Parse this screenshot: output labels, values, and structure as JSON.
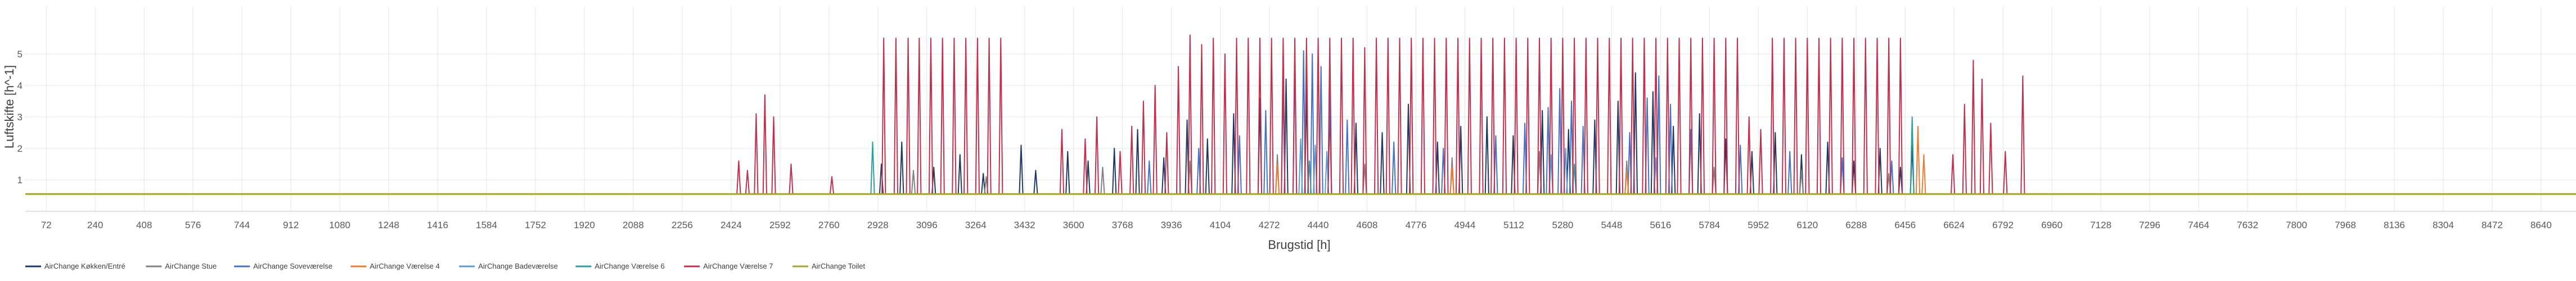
{
  "chart_data": {
    "type": "line",
    "title": "",
    "xlabel": "Brugstid [h]",
    "ylabel": "Luftskifte [h^-1]",
    "xlim": [
      0,
      8760
    ],
    "ylim": [
      0,
      6.5
    ],
    "grid": true,
    "legend_position": "bottom-left",
    "x_ticks": [
      72,
      240,
      408,
      576,
      744,
      912,
      1080,
      1248,
      1416,
      1584,
      1752,
      1920,
      2088,
      2256,
      2424,
      2592,
      2760,
      2928,
      3096,
      3264,
      3432,
      3600,
      3768,
      3936,
      4104,
      4272,
      4440,
      4608,
      4776,
      4944,
      5112,
      5280,
      5448,
      5616,
      5784,
      5952,
      6120,
      6288,
      6456,
      6624,
      6792,
      6960,
      7128,
      7296,
      7464,
      7632,
      7800,
      7968,
      8136,
      8304,
      8472,
      8640
    ],
    "y_ticks": [
      1,
      2,
      3,
      4,
      5
    ],
    "baseline": 0.55,
    "series": [
      {
        "name": "AirChange Køkken/Entré",
        "color": "#203864",
        "peaks": [
          [
            2940,
            1.5
          ],
          [
            3010,
            2.2
          ],
          [
            3120,
            1.4
          ],
          [
            3210,
            1.8
          ],
          [
            3290,
            1.2
          ],
          [
            3420,
            2.1
          ],
          [
            3470,
            1.3
          ],
          [
            3580,
            1.9
          ],
          [
            3650,
            1.6
          ],
          [
            3740,
            2.0
          ],
          [
            3820,
            2.6
          ],
          [
            3910,
            1.7
          ],
          [
            3990,
            2.9
          ],
          [
            4060,
            2.3
          ],
          [
            4150,
            3.1
          ],
          [
            4240,
            3.6
          ],
          [
            4330,
            4.2
          ],
          [
            4400,
            3.9
          ],
          [
            4480,
            3.3
          ],
          [
            4570,
            2.8
          ],
          [
            4660,
            2.5
          ],
          [
            4750,
            3.4
          ],
          [
            4850,
            2.2
          ],
          [
            4930,
            2.7
          ],
          [
            5020,
            3.0
          ],
          [
            5110,
            2.4
          ],
          [
            5210,
            3.2
          ],
          [
            5300,
            2.6
          ],
          [
            5390,
            2.9
          ],
          [
            5470,
            3.5
          ],
          [
            5530,
            4.4
          ],
          [
            5590,
            3.8
          ],
          [
            5660,
            2.7
          ],
          [
            5750,
            3.1
          ],
          [
            5840,
            2.3
          ],
          [
            5930,
            1.9
          ],
          [
            6010,
            2.5
          ],
          [
            6100,
            1.8
          ],
          [
            6190,
            2.2
          ],
          [
            6280,
            1.6
          ],
          [
            6370,
            2.0
          ],
          [
            6440,
            1.4
          ],
          [
            6480,
            2.1
          ]
        ]
      },
      {
        "name": "AirChange Stue",
        "color": "#808080",
        "peaks": [
          [
            3050,
            1.3
          ],
          [
            3300,
            1.1
          ],
          [
            3700,
            1.4
          ],
          [
            4000,
            1.6
          ],
          [
            4300,
            1.8
          ],
          [
            4600,
            1.5
          ],
          [
            4900,
            1.7
          ],
          [
            5200,
            1.9
          ],
          [
            5500,
            1.6
          ],
          [
            5800,
            1.4
          ],
          [
            6100,
            1.3
          ],
          [
            6400,
            1.2
          ]
        ]
      },
      {
        "name": "AirChange Soveværelse",
        "color": "#4472C4",
        "peaks": [
          [
            3860,
            1.6
          ],
          [
            4030,
            2.0
          ],
          [
            4170,
            2.4
          ],
          [
            4260,
            3.2
          ],
          [
            4320,
            4.1
          ],
          [
            4360,
            4.7
          ],
          [
            4390,
            5.1
          ],
          [
            4420,
            5.0
          ],
          [
            4450,
            4.6
          ],
          [
            4480,
            3.8
          ],
          [
            4540,
            2.9
          ],
          [
            4700,
            2.2
          ],
          [
            4870,
            2.0
          ],
          [
            5050,
            2.4
          ],
          [
            5150,
            2.8
          ],
          [
            5230,
            3.3
          ],
          [
            5270,
            3.9
          ],
          [
            5310,
            3.5
          ],
          [
            5350,
            2.7
          ],
          [
            5510,
            2.5
          ],
          [
            5570,
            3.6
          ],
          [
            5610,
            4.3
          ],
          [
            5650,
            3.4
          ],
          [
            5720,
            2.6
          ],
          [
            5890,
            2.1
          ],
          [
            6060,
            1.9
          ],
          [
            6240,
            1.7
          ],
          [
            6410,
            1.6
          ]
        ]
      },
      {
        "name": "AirChange Værelse 4",
        "color": "#ED7D31",
        "peaks": [
          [
            4300,
            1.5
          ],
          [
            4900,
            1.4
          ],
          [
            5500,
            1.3
          ],
          [
            6500,
            2.7
          ],
          [
            6520,
            1.8
          ]
        ]
      },
      {
        "name": "AirChange Badeværelse",
        "color": "#5B9BD5",
        "peaks": [
          [
            4380,
            2.3
          ],
          [
            4430,
            2.1
          ],
          [
            4470,
            1.9
          ],
          [
            5240,
            1.8
          ],
          [
            5290,
            2.0
          ],
          [
            5600,
            1.7
          ]
        ]
      },
      {
        "name": "AirChange Værelse 6",
        "color": "#2E9E9E",
        "peaks": [
          [
            2910,
            2.2
          ],
          [
            4410,
            1.6
          ],
          [
            5320,
            1.5
          ],
          [
            6480,
            3.0
          ]
        ]
      },
      {
        "name": "AirChange Værelse 7",
        "color": "#C0304F",
        "peaks": [
          [
            2450,
            1.6
          ],
          [
            2480,
            1.3
          ],
          [
            2510,
            3.1
          ],
          [
            2540,
            3.7
          ],
          [
            2570,
            3.0
          ],
          [
            2630,
            1.5
          ],
          [
            2770,
            1.1
          ],
          [
            2948,
            5.5
          ],
          [
            2990,
            5.5
          ],
          [
            3032,
            5.5
          ],
          [
            3070,
            5.5
          ],
          [
            3110,
            5.5
          ],
          [
            3150,
            5.5
          ],
          [
            3190,
            5.5
          ],
          [
            3230,
            5.5
          ],
          [
            3270,
            5.5
          ],
          [
            3310,
            5.5
          ],
          [
            3350,
            5.5
          ],
          [
            3560,
            2.6
          ],
          [
            3640,
            2.3
          ],
          [
            3680,
            3.0
          ],
          [
            3760,
            1.9
          ],
          [
            3800,
            2.7
          ],
          [
            3840,
            3.5
          ],
          [
            3880,
            4.0
          ],
          [
            3920,
            2.5
          ],
          [
            3960,
            4.6
          ],
          [
            4000,
            5.6
          ],
          [
            4040,
            5.3
          ],
          [
            4080,
            5.5
          ],
          [
            4120,
            5.0
          ],
          [
            4160,
            5.5
          ],
          [
            4200,
            5.5
          ],
          [
            4240,
            5.5
          ],
          [
            4280,
            5.5
          ],
          [
            4320,
            5.5
          ],
          [
            4360,
            5.5
          ],
          [
            4400,
            5.5
          ],
          [
            4440,
            5.5
          ],
          [
            4480,
            5.5
          ],
          [
            4520,
            5.5
          ],
          [
            4560,
            5.5
          ],
          [
            4600,
            5.2
          ],
          [
            4640,
            5.5
          ],
          [
            4680,
            5.5
          ],
          [
            4720,
            5.5
          ],
          [
            4760,
            5.5
          ],
          [
            4800,
            5.5
          ],
          [
            4840,
            5.5
          ],
          [
            4880,
            5.5
          ],
          [
            4920,
            5.5
          ],
          [
            4960,
            5.5
          ],
          [
            5000,
            5.5
          ],
          [
            5040,
            5.5
          ],
          [
            5080,
            5.5
          ],
          [
            5120,
            5.5
          ],
          [
            5160,
            5.5
          ],
          [
            5200,
            5.5
          ],
          [
            5240,
            5.5
          ],
          [
            5280,
            5.5
          ],
          [
            5320,
            5.5
          ],
          [
            5360,
            5.5
          ],
          [
            5400,
            5.5
          ],
          [
            5440,
            5.5
          ],
          [
            5480,
            5.5
          ],
          [
            5520,
            5.5
          ],
          [
            5560,
            5.5
          ],
          [
            5600,
            5.5
          ],
          [
            5640,
            5.5
          ],
          [
            5680,
            5.5
          ],
          [
            5720,
            5.5
          ],
          [
            5760,
            5.5
          ],
          [
            5800,
            5.5
          ],
          [
            5840,
            5.5
          ],
          [
            5880,
            5.5
          ],
          [
            5920,
            3.0
          ],
          [
            5960,
            2.6
          ],
          [
            6000,
            5.5
          ],
          [
            6040,
            5.5
          ],
          [
            6080,
            5.5
          ],
          [
            6120,
            5.5
          ],
          [
            6160,
            5.5
          ],
          [
            6200,
            5.5
          ],
          [
            6240,
            5.5
          ],
          [
            6280,
            5.5
          ],
          [
            6320,
            5.5
          ],
          [
            6360,
            5.5
          ],
          [
            6400,
            5.5
          ],
          [
            6440,
            5.5
          ],
          [
            6620,
            1.8
          ],
          [
            6660,
            3.4
          ],
          [
            6690,
            4.8
          ],
          [
            6720,
            4.2
          ],
          [
            6750,
            2.8
          ],
          [
            6800,
            1.9
          ],
          [
            6860,
            4.3
          ]
        ]
      },
      {
        "name": "AirChange Toilet",
        "color": "#A5A52D",
        "peaks": []
      }
    ]
  }
}
